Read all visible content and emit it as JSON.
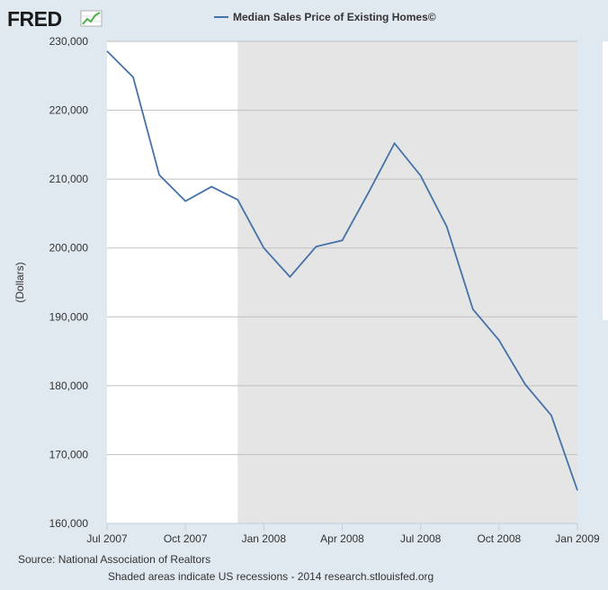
{
  "logo": {
    "text": "FRED",
    "icon": "line-graph-icon"
  },
  "colors": {
    "page_background": "#e1e9f0",
    "plot_background": "#ffffff",
    "recession_shading": "#e5e5e5",
    "series_line": "#4572a7",
    "gridline": "#c0c0c0",
    "axis_line": "#c0d0e0"
  },
  "chart_data": {
    "type": "line",
    "title": "",
    "xlabel": "",
    "ylabel": "(Dollars)",
    "legend": {
      "position": "top-center",
      "entries": [
        "Median Sales Price of Existing Homes©"
      ]
    },
    "x_range": [
      "2007-07",
      "2009-01"
    ],
    "ylim": [
      160000,
      230000
    ],
    "y_ticks": [
      160000,
      170000,
      180000,
      190000,
      200000,
      210000,
      220000,
      230000
    ],
    "y_tick_labels": [
      "160,000",
      "170,000",
      "180,000",
      "190,000",
      "200,000",
      "210,000",
      "220,000",
      "230,000"
    ],
    "x_ticks": [
      "2007-07",
      "2007-10",
      "2008-01",
      "2008-04",
      "2008-07",
      "2008-10",
      "2009-01"
    ],
    "x_tick_labels": [
      "Jul 2007",
      "Oct 2007",
      "Jan 2008",
      "Apr 2008",
      "Jul 2008",
      "Oct 2008",
      "Jan 2009"
    ],
    "grid": true,
    "recession_shading": [
      {
        "start": "2007-12",
        "end": "2009-01"
      }
    ],
    "series": [
      {
        "name": "Median Sales Price of Existing Homes©",
        "x": [
          "2007-07",
          "2007-08",
          "2007-09",
          "2007-10",
          "2007-11",
          "2007-12",
          "2008-01",
          "2008-02",
          "2008-03",
          "2008-04",
          "2008-05",
          "2008-06",
          "2008-07",
          "2008-08",
          "2008-09",
          "2008-10",
          "2008-11",
          "2008-12",
          "2009-01"
        ],
        "values": [
          228600,
          224800,
          210600,
          206800,
          208900,
          207000,
          200000,
          195800,
          200200,
          201100,
          208000,
          215200,
          210500,
          203100,
          191100,
          186600,
          180200,
          175700,
          164800
        ]
      }
    ]
  },
  "footer": {
    "source": "Source: National Association of Realtors",
    "note": "Shaded areas indicate US recessions - 2014 research.stlouisfed.org"
  }
}
